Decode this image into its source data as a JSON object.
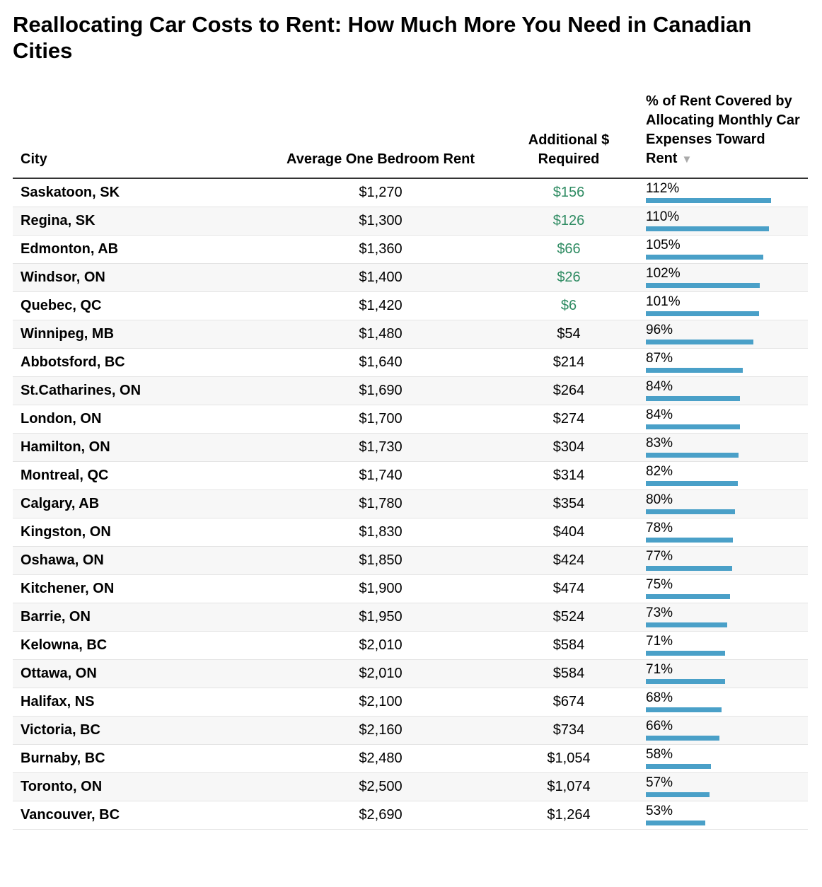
{
  "title": "Reallocating Car Costs to Rent: How Much More You Need in Canadian Cities",
  "table": {
    "headers": {
      "city": "City",
      "rent": "Average One Bedroom Rent",
      "additional": "Additional $ Required",
      "percent": "% of Rent Covered by Allocating Monthly Car Expenses Toward Rent",
      "sort_icon": "▼"
    },
    "colors": {
      "surplus": "#2e8b62",
      "bar": "#4aa0c8"
    }
  },
  "chart_data": {
    "type": "table",
    "columns": [
      "City",
      "Average One Bedroom Rent",
      "Additional $ Required",
      "% of Rent Covered by Allocating Monthly Car Expenses Toward Rent"
    ],
    "sorted_by": "% of Rent Covered by Allocating Monthly Car Expenses Toward Rent",
    "sort_order": "descending",
    "bar_max": 112,
    "rows": [
      {
        "city": "Saskatoon, SK",
        "rent": "$1,270",
        "additional": "$156",
        "surplus": true,
        "pct_label": "112%",
        "pct": 112
      },
      {
        "city": "Regina, SK",
        "rent": "$1,300",
        "additional": "$126",
        "surplus": true,
        "pct_label": "110%",
        "pct": 110
      },
      {
        "city": "Edmonton, AB",
        "rent": "$1,360",
        "additional": "$66",
        "surplus": true,
        "pct_label": "105%",
        "pct": 105
      },
      {
        "city": "Windsor, ON",
        "rent": "$1,400",
        "additional": "$26",
        "surplus": true,
        "pct_label": "102%",
        "pct": 102
      },
      {
        "city": "Quebec, QC",
        "rent": "$1,420",
        "additional": "$6",
        "surplus": true,
        "pct_label": "101%",
        "pct": 101
      },
      {
        "city": "Winnipeg, MB",
        "rent": "$1,480",
        "additional": "$54",
        "surplus": false,
        "pct_label": "96%",
        "pct": 96
      },
      {
        "city": "Abbotsford, BC",
        "rent": "$1,640",
        "additional": "$214",
        "surplus": false,
        "pct_label": "87%",
        "pct": 87
      },
      {
        "city": "St.Catharines, ON",
        "rent": "$1,690",
        "additional": "$264",
        "surplus": false,
        "pct_label": "84%",
        "pct": 84
      },
      {
        "city": "London, ON",
        "rent": "$1,700",
        "additional": "$274",
        "surplus": false,
        "pct_label": "84%",
        "pct": 84
      },
      {
        "city": "Hamilton, ON",
        "rent": "$1,730",
        "additional": "$304",
        "surplus": false,
        "pct_label": "83%",
        "pct": 83
      },
      {
        "city": "Montreal, QC",
        "rent": "$1,740",
        "additional": "$314",
        "surplus": false,
        "pct_label": "82%",
        "pct": 82
      },
      {
        "city": "Calgary, AB",
        "rent": "$1,780",
        "additional": "$354",
        "surplus": false,
        "pct_label": "80%",
        "pct": 80
      },
      {
        "city": "Kingston, ON",
        "rent": "$1,830",
        "additional": "$404",
        "surplus": false,
        "pct_label": "78%",
        "pct": 78
      },
      {
        "city": "Oshawa, ON",
        "rent": "$1,850",
        "additional": "$424",
        "surplus": false,
        "pct_label": "77%",
        "pct": 77
      },
      {
        "city": "Kitchener, ON",
        "rent": "$1,900",
        "additional": "$474",
        "surplus": false,
        "pct_label": "75%",
        "pct": 75
      },
      {
        "city": "Barrie, ON",
        "rent": "$1,950",
        "additional": "$524",
        "surplus": false,
        "pct_label": "73%",
        "pct": 73
      },
      {
        "city": "Kelowna, BC",
        "rent": "$2,010",
        "additional": "$584",
        "surplus": false,
        "pct_label": "71%",
        "pct": 71
      },
      {
        "city": "Ottawa, ON",
        "rent": "$2,010",
        "additional": "$584",
        "surplus": false,
        "pct_label": "71%",
        "pct": 71
      },
      {
        "city": "Halifax, NS",
        "rent": "$2,100",
        "additional": "$674",
        "surplus": false,
        "pct_label": "68%",
        "pct": 68
      },
      {
        "city": "Victoria, BC",
        "rent": "$2,160",
        "additional": "$734",
        "surplus": false,
        "pct_label": "66%",
        "pct": 66
      },
      {
        "city": "Burnaby, BC",
        "rent": "$2,480",
        "additional": "$1,054",
        "surplus": false,
        "pct_label": "58%",
        "pct": 58
      },
      {
        "city": "Toronto, ON",
        "rent": "$2,500",
        "additional": "$1,074",
        "surplus": false,
        "pct_label": "57%",
        "pct": 57
      },
      {
        "city": "Vancouver, BC",
        "rent": "$2,690",
        "additional": "$1,264",
        "surplus": false,
        "pct_label": "53%",
        "pct": 53
      }
    ]
  }
}
